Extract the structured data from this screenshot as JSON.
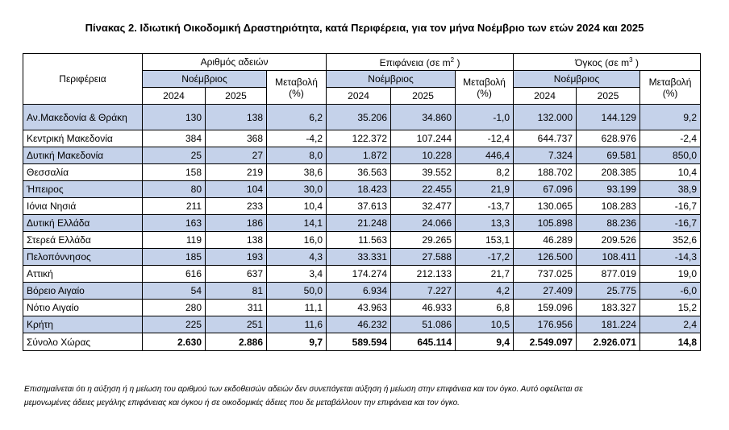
{
  "title": "Πίνακας 2. Ιδιωτική Οικοδομική Δραστηριότητα, κατά  Περιφέρεια, για τον μήνα Νοέμβριο των ετών 2024 και 2025",
  "headers": {
    "region": "Περιφέρεια",
    "permits": "Αριθμός αδειών",
    "area_prefix": "Επιφάνεια (σε m",
    "area_sup": "2",
    "area_suffix": " )",
    "volume_prefix": "Όγκος (σε m",
    "volume_sup": "3",
    "volume_suffix": " )",
    "month": "Νοέμβριος",
    "change": "Μεταβολή",
    "percent": "(%)",
    "year1": "2024",
    "year2": "2025"
  },
  "rows": [
    {
      "region": "Αν.Μακεδονία & Θράκη",
      "p24": "130",
      "p25": "138",
      "pch": "6,2",
      "a24": "35.206",
      "a25": "34.860",
      "ach": "-1,0",
      "v24": "132.000",
      "v25": "144.129",
      "vch": "9,2"
    },
    {
      "region": "Κεντρική Μακεδονία",
      "p24": "384",
      "p25": "368",
      "pch": "-4,2",
      "a24": "122.372",
      "a25": "107.244",
      "ach": "-12,4",
      "v24": "644.737",
      "v25": "628.976",
      "vch": "-2,4"
    },
    {
      "region": "Δυτική Μακεδονία",
      "p24": "25",
      "p25": "27",
      "pch": "8,0",
      "a24": "1.872",
      "a25": "10.228",
      "ach": "446,4",
      "v24": "7.324",
      "v25": "69.581",
      "vch": "850,0"
    },
    {
      "region": "Θεσσαλία",
      "p24": "158",
      "p25": "219",
      "pch": "38,6",
      "a24": "36.563",
      "a25": "39.552",
      "ach": "8,2",
      "v24": "188.702",
      "v25": "208.385",
      "vch": "10,4"
    },
    {
      "region": "Ήπειρος",
      "p24": "80",
      "p25": "104",
      "pch": "30,0",
      "a24": "18.423",
      "a25": "22.455",
      "ach": "21,9",
      "v24": "67.096",
      "v25": "93.199",
      "vch": "38,9"
    },
    {
      "region": "Ιόνια Νησιά",
      "p24": "211",
      "p25": "233",
      "pch": "10,4",
      "a24": "37.613",
      "a25": "32.477",
      "ach": "-13,7",
      "v24": "130.065",
      "v25": "108.283",
      "vch": "-16,7"
    },
    {
      "region": "Δυτική Ελλάδα",
      "p24": "163",
      "p25": "186",
      "pch": "14,1",
      "a24": "21.248",
      "a25": "24.066",
      "ach": "13,3",
      "v24": "105.898",
      "v25": "88.236",
      "vch": "-16,7"
    },
    {
      "region": "Στερεά Ελλάδα",
      "p24": "119",
      "p25": "138",
      "pch": "16,0",
      "a24": "11.563",
      "a25": "29.265",
      "ach": "153,1",
      "v24": "46.289",
      "v25": "209.526",
      "vch": "352,6"
    },
    {
      "region": "Πελοπόννησος",
      "p24": "185",
      "p25": "193",
      "pch": "4,3",
      "a24": "33.331",
      "a25": "27.588",
      "ach": "-17,2",
      "v24": "126.500",
      "v25": "108.411",
      "vch": "-14,3"
    },
    {
      "region": "Αττική",
      "p24": "616",
      "p25": "637",
      "pch": "3,4",
      "a24": "174.274",
      "a25": "212.133",
      "ach": "21,7",
      "v24": "737.025",
      "v25": "877.019",
      "vch": "19,0"
    },
    {
      "region": "Βόρειο Αιγαίο",
      "p24": "54",
      "p25": "81",
      "pch": "50,0",
      "a24": "6.934",
      "a25": "7.227",
      "ach": "4,2",
      "v24": "27.409",
      "v25": "25.775",
      "vch": "-6,0"
    },
    {
      "region": "Νότιο Αιγαίο",
      "p24": "280",
      "p25": "311",
      "pch": "11,1",
      "a24": "43.963",
      "a25": "46.933",
      "ach": "6,8",
      "v24": "159.096",
      "v25": "183.327",
      "vch": "15,2"
    },
    {
      "region": "Κρήτη",
      "p24": "225",
      "p25": "251",
      "pch": "11,6",
      "a24": "46.232",
      "a25": "51.086",
      "ach": "10,5",
      "v24": "176.956",
      "v25": "181.224",
      "vch": "2,4"
    },
    {
      "region": "Σύνολο Χώρας",
      "p24": "2.630",
      "p25": "2.886",
      "pch": "9,7",
      "a24": "589.594",
      "a25": "645.114",
      "ach": "9,4",
      "v24": "2.549.097",
      "v25": "2.926.071",
      "vch": "14,8"
    }
  ],
  "note_line1": "Επισημαίνεται ότι η αύξηση ή η μείωση του αριθμού των εκδοθεισών αδειών δεν συνεπάγεται αύξηση ή μείωση στην επιφάνεια και τον όγκο. Αυτό οφείλεται σε",
  "note_line2": "μεμονωμένες άδειες μεγάλης επιφάνειας και όγκου ή σε οικοδομικές άδειες που δε μεταβάλλουν την επιφάνεια και τον όγκο."
}
